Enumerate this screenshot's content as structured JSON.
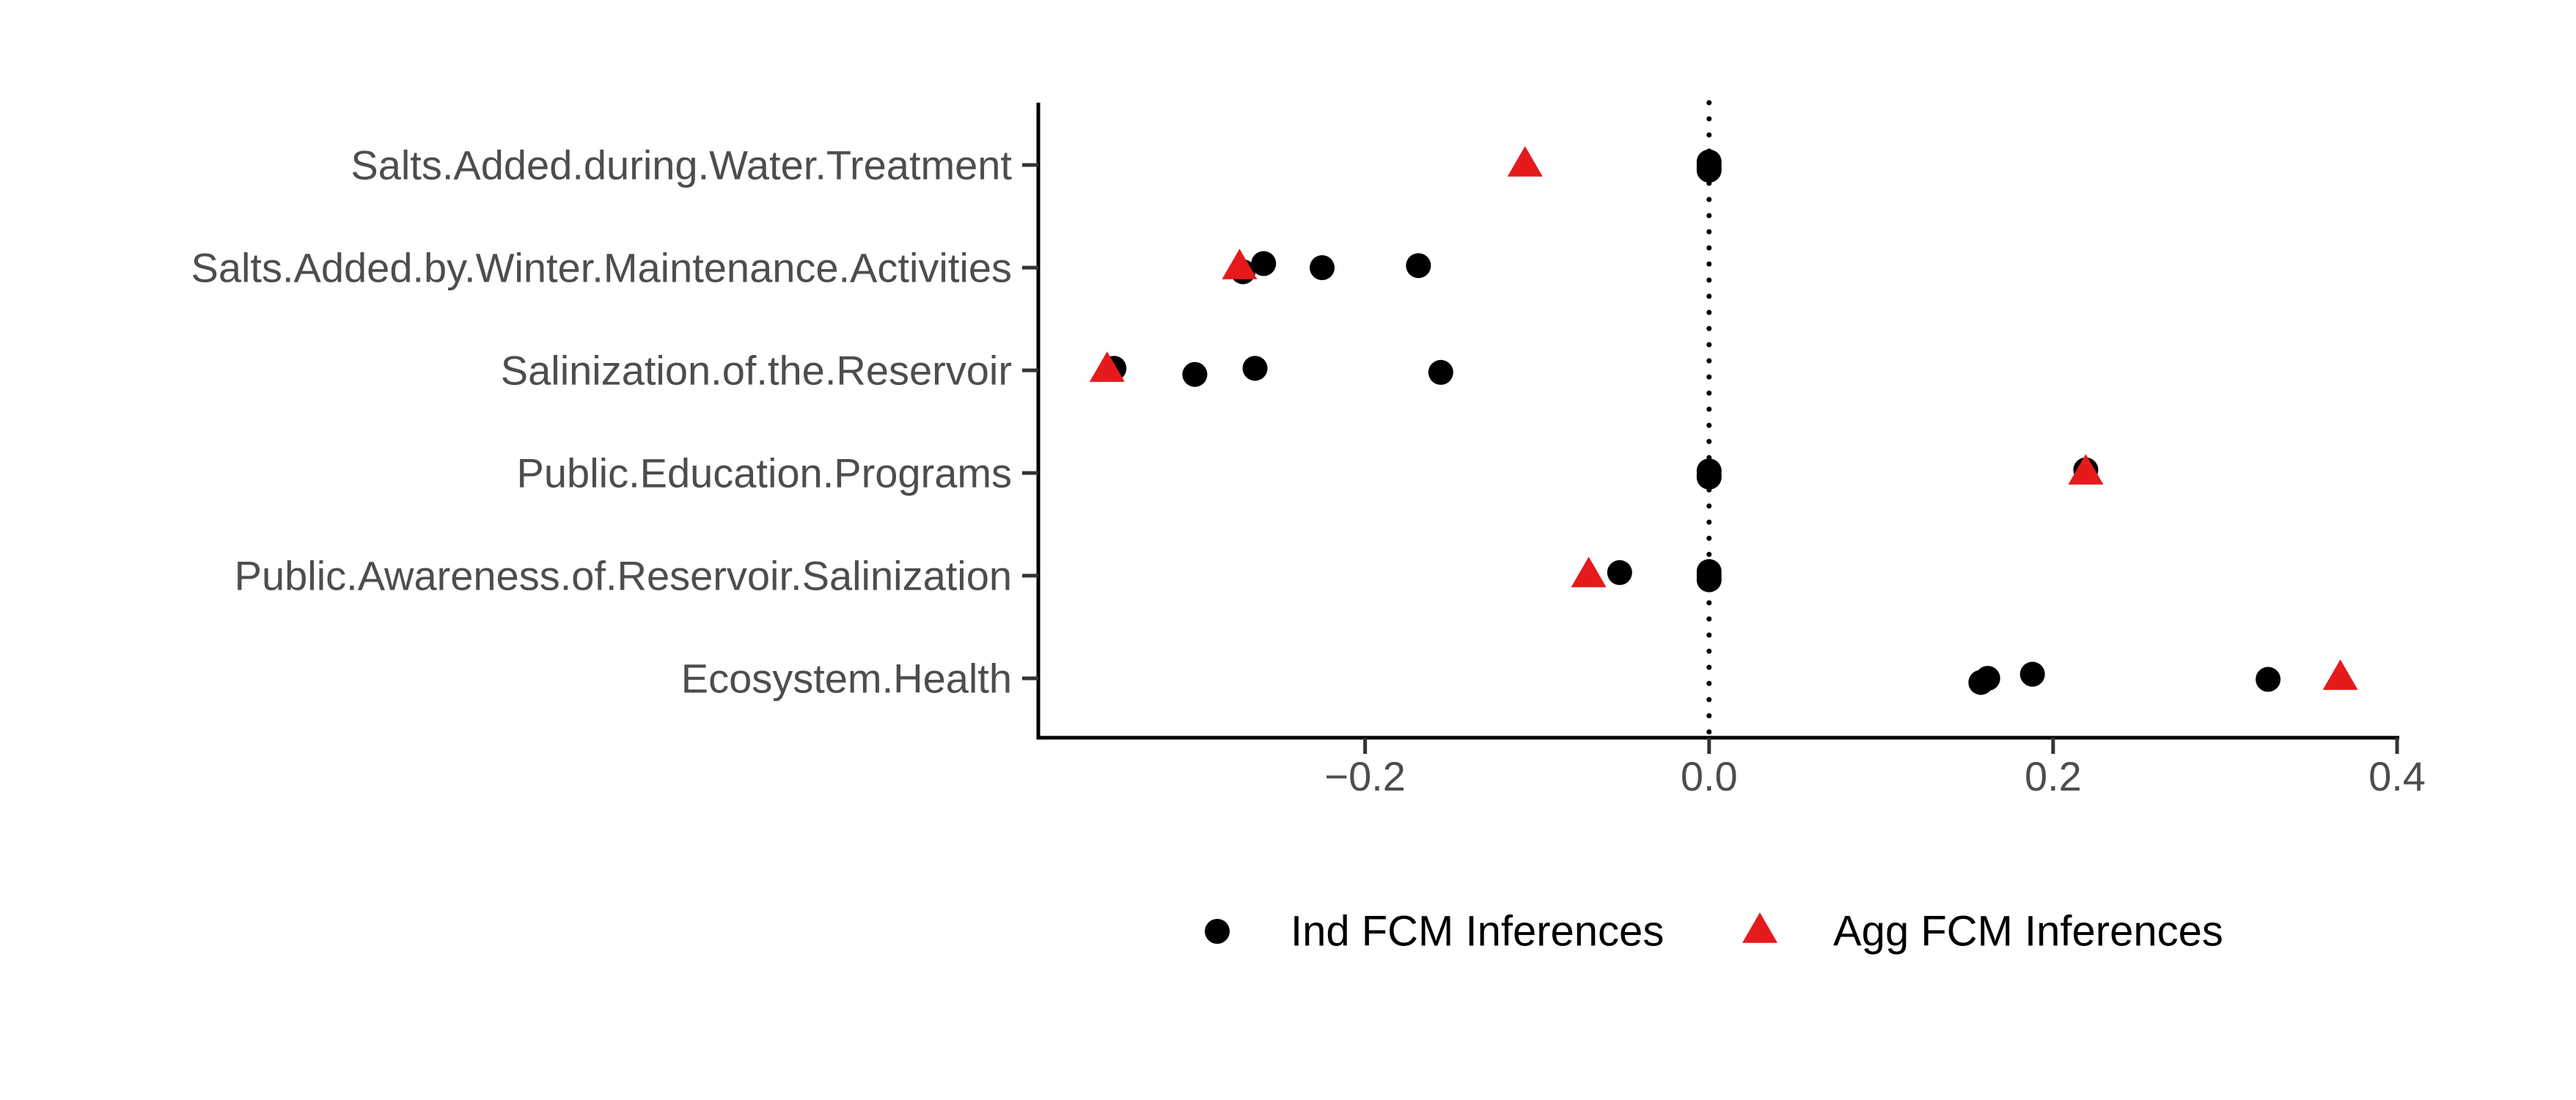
{
  "chart_data": {
    "type": "scatter",
    "title": "",
    "xlabel": "",
    "ylabel": "",
    "categories": [
      "Salts.Added.during.Water.Treatment",
      "Salts.Added.by.Winter.Maintenance.Activities",
      "Salinization.of.the.Reservoir",
      "Public.Education.Programs",
      "Public.Awareness.of.Reservoir.Salinization",
      "Ecosystem.Health"
    ],
    "xlim": [
      -0.39,
      0.4
    ],
    "xticks": [
      {
        "value": -0.2,
        "label": "−0.2"
      },
      {
        "value": 0.0,
        "label": "0.0"
      },
      {
        "value": 0.2,
        "label": "0.2"
      },
      {
        "value": 0.4,
        "label": "0.4"
      }
    ],
    "reference_line": {
      "x": 0.0,
      "style": "dotted"
    },
    "grid": false,
    "legend_position": "bottom",
    "series": [
      {
        "name": "Ind FCM Inferences",
        "marker": "circle",
        "color": "#000000",
        "points": [
          {
            "category": "Salts.Added.during.Water.Treatment",
            "x": 0.0,
            "jitter": -0.03
          },
          {
            "category": "Salts.Added.during.Water.Treatment",
            "x": 0.0,
            "jitter": 0.0
          },
          {
            "category": "Salts.Added.during.Water.Treatment",
            "x": 0.0,
            "jitter": 0.03
          },
          {
            "category": "Salts.Added.during.Water.Treatment",
            "x": 0.0,
            "jitter": 0.05
          },
          {
            "category": "Salts.Added.by.Winter.Maintenance.Activities",
            "x": -0.271,
            "jitter": 0.04
          },
          {
            "category": "Salts.Added.by.Winter.Maintenance.Activities",
            "x": -0.259,
            "jitter": -0.04
          },
          {
            "category": "Salts.Added.by.Winter.Maintenance.Activities",
            "x": -0.225,
            "jitter": 0.0
          },
          {
            "category": "Salts.Added.by.Winter.Maintenance.Activities",
            "x": -0.169,
            "jitter": -0.02
          },
          {
            "category": "Salinization.of.the.Reservoir",
            "x": -0.346,
            "jitter": -0.02
          },
          {
            "category": "Salinization.of.the.Reservoir",
            "x": -0.299,
            "jitter": 0.04
          },
          {
            "category": "Salinization.of.the.Reservoir",
            "x": -0.264,
            "jitter": -0.02
          },
          {
            "category": "Salinization.of.the.Reservoir",
            "x": -0.156,
            "jitter": 0.02
          },
          {
            "category": "Public.Education.Programs",
            "x": 0.0,
            "jitter": -0.02
          },
          {
            "category": "Public.Education.Programs",
            "x": 0.0,
            "jitter": 0.02
          },
          {
            "category": "Public.Education.Programs",
            "x": 0.0,
            "jitter": 0.04
          },
          {
            "category": "Public.Education.Programs",
            "x": 0.219,
            "jitter": -0.03
          },
          {
            "category": "Public.Awareness.of.Reservoir.Salinization",
            "x": -0.052,
            "jitter": -0.03
          },
          {
            "category": "Public.Awareness.of.Reservoir.Salinization",
            "x": 0.0,
            "jitter": -0.04
          },
          {
            "category": "Public.Awareness.of.Reservoir.Salinization",
            "x": 0.0,
            "jitter": 0.0
          },
          {
            "category": "Public.Awareness.of.Reservoir.Salinization",
            "x": 0.0,
            "jitter": 0.04
          },
          {
            "category": "Ecosystem.Health",
            "x": 0.158,
            "jitter": 0.04
          },
          {
            "category": "Ecosystem.Health",
            "x": 0.162,
            "jitter": 0.0
          },
          {
            "category": "Ecosystem.Health",
            "x": 0.188,
            "jitter": -0.04
          },
          {
            "category": "Ecosystem.Health",
            "x": 0.325,
            "jitter": 0.01
          }
        ]
      },
      {
        "name": "Agg FCM Inferences",
        "marker": "triangle",
        "color": "#e41a1c",
        "points": [
          {
            "category": "Salts.Added.during.Water.Treatment",
            "x": -0.107
          },
          {
            "category": "Salts.Added.by.Winter.Maintenance.Activities",
            "x": -0.273
          },
          {
            "category": "Salinization.of.the.Reservoir",
            "x": -0.35
          },
          {
            "category": "Public.Education.Programs",
            "x": 0.219
          },
          {
            "category": "Public.Awareness.of.Reservoir.Salinization",
            "x": -0.07
          },
          {
            "category": "Ecosystem.Health",
            "x": 0.367
          }
        ]
      }
    ]
  }
}
